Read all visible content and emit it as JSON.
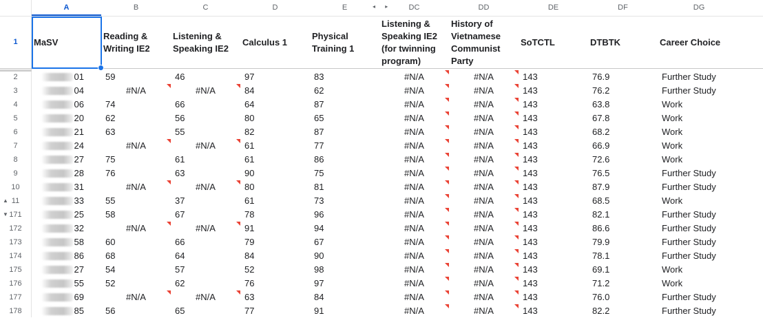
{
  "columns": [
    {
      "letter": "A",
      "header": "MaSV",
      "selected": true
    },
    {
      "letter": "B",
      "header": "Reading & Writing IE2"
    },
    {
      "letter": "C",
      "header": "Listening & Speaking IE2"
    },
    {
      "letter": "D",
      "header": "Calculus 1"
    },
    {
      "letter": "E",
      "header": "Physical Training 1"
    },
    {
      "letter": "DC",
      "header": "Listening & Speaking IE2 (for twinning program)"
    },
    {
      "letter": "DD",
      "header": "History of Vietnamese Communist Party"
    },
    {
      "letter": "DE",
      "header": "SoTCTL"
    },
    {
      "letter": "DF",
      "header": "DTBTK"
    },
    {
      "letter": "DG",
      "header": "Career Choice"
    }
  ],
  "header_row_number": "1",
  "rows": [
    {
      "row": "2",
      "id": "01",
      "rw": "59",
      "ls": "46",
      "calc": "97",
      "pt": "83",
      "twin": "#N/A",
      "hist": "#N/A",
      "tc": "143",
      "dtb": "76.9",
      "career": "Further Study"
    },
    {
      "row": "3",
      "id": "04",
      "rw": "#N/A",
      "ls": "#N/A",
      "calc": "84",
      "pt": "62",
      "twin": "#N/A",
      "hist": "#N/A",
      "tc": "143",
      "dtb": "76.2",
      "career": "Further Study"
    },
    {
      "row": "4",
      "id": "06",
      "rw": "74",
      "ls": "66",
      "calc": "64",
      "pt": "87",
      "twin": "#N/A",
      "hist": "#N/A",
      "tc": "143",
      "dtb": "63.8",
      "career": "Work"
    },
    {
      "row": "5",
      "id": "20",
      "rw": "62",
      "ls": "56",
      "calc": "80",
      "pt": "65",
      "twin": "#N/A",
      "hist": "#N/A",
      "tc": "143",
      "dtb": "67.8",
      "career": "Work"
    },
    {
      "row": "6",
      "id": "21",
      "rw": "63",
      "ls": "55",
      "calc": "82",
      "pt": "87",
      "twin": "#N/A",
      "hist": "#N/A",
      "tc": "143",
      "dtb": "68.2",
      "career": "Work"
    },
    {
      "row": "7",
      "id": "24",
      "rw": "#N/A",
      "ls": "#N/A",
      "calc": "61",
      "pt": "77",
      "twin": "#N/A",
      "hist": "#N/A",
      "tc": "143",
      "dtb": "66.9",
      "career": "Work"
    },
    {
      "row": "8",
      "id": "27",
      "rw": "75",
      "ls": "61",
      "calc": "61",
      "pt": "86",
      "twin": "#N/A",
      "hist": "#N/A",
      "tc": "143",
      "dtb": "72.6",
      "career": "Work"
    },
    {
      "row": "9",
      "id": "28",
      "rw": "76",
      "ls": "63",
      "calc": "90",
      "pt": "75",
      "twin": "#N/A",
      "hist": "#N/A",
      "tc": "143",
      "dtb": "76.5",
      "career": "Further Study"
    },
    {
      "row": "10",
      "id": "31",
      "rw": "#N/A",
      "ls": "#N/A",
      "calc": "80",
      "pt": "81",
      "twin": "#N/A",
      "hist": "#N/A",
      "tc": "143",
      "dtb": "87.9",
      "career": "Further Study"
    },
    {
      "row": "11",
      "id": "33",
      "rw": "55",
      "ls": "37",
      "calc": "61",
      "pt": "73",
      "twin": "#N/A",
      "hist": "#N/A",
      "tc": "143",
      "dtb": "68.5",
      "career": "Work",
      "caret": "▲"
    },
    {
      "row": "171",
      "id": "25",
      "rw": "58",
      "ls": "67",
      "calc": "78",
      "pt": "96",
      "twin": "#N/A",
      "hist": "#N/A",
      "tc": "143",
      "dtb": "82.1",
      "career": "Further Study",
      "caret": "▼"
    },
    {
      "row": "172",
      "id": "32",
      "rw": "#N/A",
      "ls": "#N/A",
      "calc": "91",
      "pt": "94",
      "twin": "#N/A",
      "hist": "#N/A",
      "tc": "143",
      "dtb": "86.6",
      "career": "Further Study"
    },
    {
      "row": "173",
      "id": "58",
      "rw": "60",
      "ls": "66",
      "calc": "79",
      "pt": "67",
      "twin": "#N/A",
      "hist": "#N/A",
      "tc": "143",
      "dtb": "79.9",
      "career": "Further Study"
    },
    {
      "row": "174",
      "id": "86",
      "rw": "68",
      "ls": "64",
      "calc": "84",
      "pt": "90",
      "twin": "#N/A",
      "hist": "#N/A",
      "tc": "143",
      "dtb": "78.1",
      "career": "Further Study"
    },
    {
      "row": "175",
      "id": "27",
      "rw": "54",
      "ls": "57",
      "calc": "52",
      "pt": "98",
      "twin": "#N/A",
      "hist": "#N/A",
      "tc": "143",
      "dtb": "69.1",
      "career": "Work"
    },
    {
      "row": "176",
      "id": "55",
      "rw": "52",
      "ls": "62",
      "calc": "76",
      "pt": "97",
      "twin": "#N/A",
      "hist": "#N/A",
      "tc": "143",
      "dtb": "71.2",
      "career": "Work"
    },
    {
      "row": "177",
      "id": "69",
      "rw": "#N/A",
      "ls": "#N/A",
      "calc": "63",
      "pt": "84",
      "twin": "#N/A",
      "hist": "#N/A",
      "tc": "143",
      "dtb": "76.0",
      "career": "Further Study"
    },
    {
      "row": "178",
      "id": "85",
      "rw": "56",
      "ls": "65",
      "calc": "77",
      "pt": "91",
      "twin": "#N/A",
      "hist": "#N/A",
      "tc": "143",
      "dtb": "82.2",
      "career": "Further Study"
    }
  ],
  "hidden_columns_indicator": "◂ ▸",
  "colors": {
    "selection": "#1a73e8",
    "error_marker": "#ea4335"
  }
}
